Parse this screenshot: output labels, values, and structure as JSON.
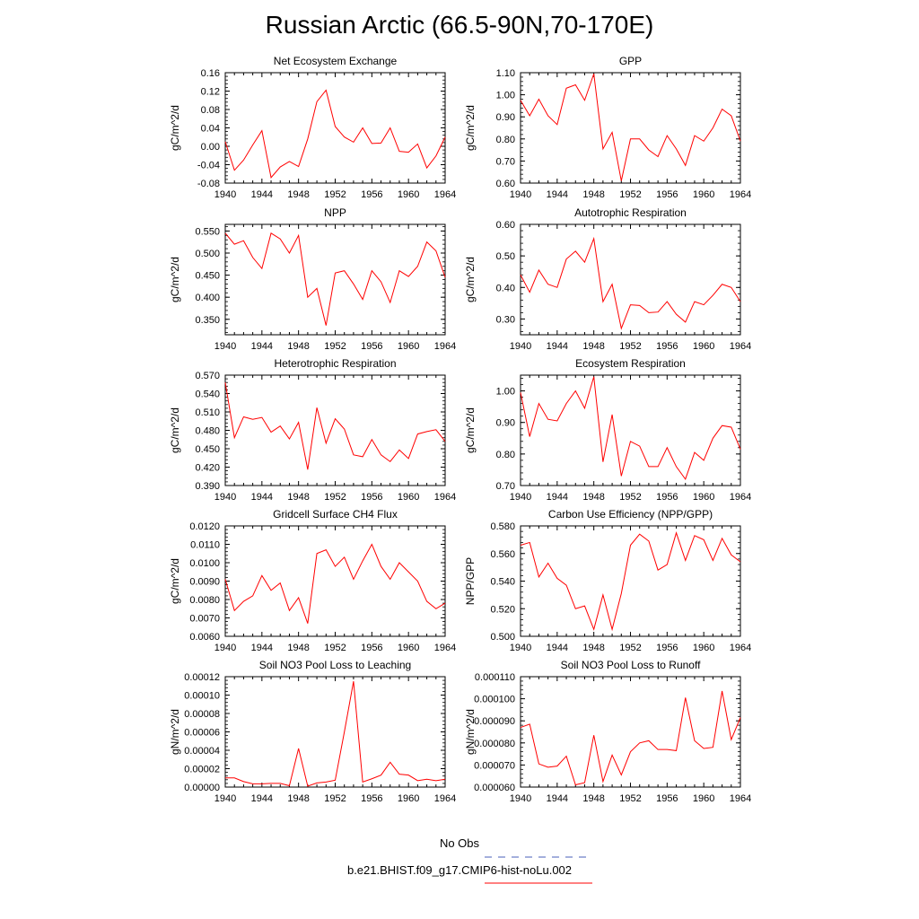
{
  "title": "Russian Arctic (66.5-90N,70-170E)",
  "legend": {
    "obs_label": "No Obs",
    "obs_color": "#4a5fb8",
    "model_label": "b.e21.BHIST.f09_g17.CMIP6-hist-noLu.002",
    "model_color": "#ff0000"
  },
  "chart_data": [
    {
      "type": "line",
      "title": "Net Ecosystem Exchange",
      "ylabel": "gC/m^2/d",
      "xlabel": "",
      "x": [
        1940,
        1941,
        1942,
        1943,
        1944,
        1945,
        1946,
        1947,
        1948,
        1949,
        1950,
        1951,
        1952,
        1953,
        1954,
        1955,
        1956,
        1957,
        1958,
        1959,
        1960,
        1961,
        1962,
        1963,
        1964
      ],
      "series": [
        {
          "values": [
            0.01,
            -0.052,
            -0.03,
            0.003,
            0.034,
            -0.068,
            -0.045,
            -0.033,
            -0.044,
            0.016,
            0.097,
            0.122,
            0.043,
            0.02,
            0.009,
            0.04,
            0.006,
            0.007,
            0.04,
            -0.011,
            -0.013,
            0.005,
            -0.047,
            -0.021,
            0.02
          ],
          "color": "#ff0000"
        }
      ],
      "xlim": [
        1940,
        1964
      ],
      "ylim": [
        -0.08,
        0.16
      ],
      "xticks": [
        "1940",
        "1944",
        "1948",
        "1952",
        "1956",
        "1960",
        "1964"
      ],
      "yticks": [
        "-0.08",
        "-0.04",
        "0.00",
        "0.04",
        "0.08",
        "0.12",
        "0.16"
      ]
    },
    {
      "type": "line",
      "title": "GPP",
      "ylabel": "gC/m^2/d",
      "xlabel": "",
      "x": [
        1940,
        1941,
        1942,
        1943,
        1944,
        1945,
        1946,
        1947,
        1948,
        1949,
        1950,
        1951,
        1952,
        1953,
        1954,
        1955,
        1956,
        1957,
        1958,
        1959,
        1960,
        1961,
        1962,
        1963,
        1964
      ],
      "series": [
        {
          "values": [
            0.975,
            0.905,
            0.98,
            0.905,
            0.865,
            1.03,
            1.045,
            0.975,
            1.095,
            0.755,
            0.83,
            0.61,
            0.8,
            0.8,
            0.75,
            0.72,
            0.815,
            0.755,
            0.68,
            0.815,
            0.79,
            0.85,
            0.935,
            0.905,
            0.79
          ],
          "color": "#ff0000"
        }
      ],
      "xlim": [
        1940,
        1964
      ],
      "ylim": [
        0.6,
        1.1
      ],
      "xticks": [
        "1940",
        "1944",
        "1948",
        "1952",
        "1956",
        "1960",
        "1964"
      ],
      "yticks": [
        "0.60",
        "0.70",
        "0.80",
        "0.90",
        "1.00",
        "1.10"
      ]
    },
    {
      "type": "line",
      "title": "NPP",
      "ylabel": "gC/m^2/d",
      "xlabel": "",
      "x": [
        1940,
        1941,
        1942,
        1943,
        1944,
        1945,
        1946,
        1947,
        1948,
        1949,
        1950,
        1951,
        1952,
        1953,
        1954,
        1955,
        1956,
        1957,
        1958,
        1959,
        1960,
        1961,
        1962,
        1963,
        1964
      ],
      "series": [
        {
          "values": [
            0.545,
            0.52,
            0.528,
            0.49,
            0.465,
            0.545,
            0.532,
            0.5,
            0.54,
            0.4,
            0.42,
            0.336,
            0.455,
            0.46,
            0.43,
            0.395,
            0.46,
            0.435,
            0.388,
            0.46,
            0.447,
            0.47,
            0.525,
            0.505,
            0.445
          ],
          "color": "#ff0000"
        }
      ],
      "xlim": [
        1940,
        1964
      ],
      "ylim": [
        0.315,
        0.565
      ],
      "xticks": [
        "1940",
        "1944",
        "1948",
        "1952",
        "1956",
        "1960",
        "1964"
      ],
      "yticks": [
        "0.350",
        "0.400",
        "0.450",
        "0.500",
        "0.550"
      ]
    },
    {
      "type": "line",
      "title": "Autotrophic Respiration",
      "ylabel": "gC/m^2/d",
      "xlabel": "",
      "x": [
        1940,
        1941,
        1942,
        1943,
        1944,
        1945,
        1946,
        1947,
        1948,
        1949,
        1950,
        1951,
        1952,
        1953,
        1954,
        1955,
        1956,
        1957,
        1958,
        1959,
        1960,
        1961,
        1962,
        1963,
        1964
      ],
      "series": [
        {
          "values": [
            0.44,
            0.385,
            0.455,
            0.41,
            0.4,
            0.49,
            0.515,
            0.48,
            0.555,
            0.355,
            0.41,
            0.27,
            0.345,
            0.343,
            0.32,
            0.322,
            0.355,
            0.315,
            0.29,
            0.355,
            0.345,
            0.375,
            0.41,
            0.4,
            0.355
          ],
          "color": "#ff0000"
        }
      ],
      "xlim": [
        1940,
        1964
      ],
      "ylim": [
        0.25,
        0.6
      ],
      "xticks": [
        "1940",
        "1944",
        "1948",
        "1952",
        "1956",
        "1960",
        "1964"
      ],
      "yticks": [
        "0.30",
        "0.40",
        "0.50",
        "0.60"
      ]
    },
    {
      "type": "line",
      "title": "Heterotrophic Respiration",
      "ylabel": "gC/m^2/d",
      "xlabel": "",
      "x": [
        1940,
        1941,
        1942,
        1943,
        1944,
        1945,
        1946,
        1947,
        1948,
        1949,
        1950,
        1951,
        1952,
        1953,
        1954,
        1955,
        1956,
        1957,
        1958,
        1959,
        1960,
        1961,
        1962,
        1963,
        1964
      ],
      "series": [
        {
          "values": [
            0.558,
            0.468,
            0.502,
            0.498,
            0.501,
            0.477,
            0.487,
            0.466,
            0.493,
            0.416,
            0.517,
            0.459,
            0.499,
            0.482,
            0.44,
            0.437,
            0.465,
            0.44,
            0.429,
            0.448,
            0.434,
            0.474,
            0.478,
            0.481,
            0.462
          ],
          "color": "#ff0000"
        }
      ],
      "xlim": [
        1940,
        1964
      ],
      "ylim": [
        0.39,
        0.57
      ],
      "xticks": [
        "1940",
        "1944",
        "1948",
        "1952",
        "1956",
        "1960",
        "1964"
      ],
      "yticks": [
        "0.390",
        "0.420",
        "0.450",
        "0.480",
        "0.510",
        "0.540",
        "0.570"
      ]
    },
    {
      "type": "line",
      "title": "Ecosystem Respiration",
      "ylabel": "gC/m^2/d",
      "xlabel": "",
      "x": [
        1940,
        1941,
        1942,
        1943,
        1944,
        1945,
        1946,
        1947,
        1948,
        1949,
        1950,
        1951,
        1952,
        1953,
        1954,
        1955,
        1956,
        1957,
        1958,
        1959,
        1960,
        1961,
        1962,
        1963,
        1964
      ],
      "series": [
        {
          "values": [
            0.995,
            0.855,
            0.96,
            0.91,
            0.905,
            0.96,
            1.0,
            0.945,
            1.045,
            0.775,
            0.925,
            0.73,
            0.84,
            0.825,
            0.76,
            0.76,
            0.82,
            0.76,
            0.72,
            0.805,
            0.78,
            0.85,
            0.89,
            0.885,
            0.815
          ],
          "color": "#ff0000"
        }
      ],
      "xlim": [
        1940,
        1964
      ],
      "ylim": [
        0.7,
        1.05
      ],
      "xticks": [
        "1940",
        "1944",
        "1948",
        "1952",
        "1956",
        "1960",
        "1964"
      ],
      "yticks": [
        "0.70",
        "0.80",
        "0.90",
        "1.00"
      ]
    },
    {
      "type": "line",
      "title": "Gridcell Surface CH4 Flux",
      "ylabel": "gC/m^2/d",
      "xlabel": "",
      "x": [
        1940,
        1941,
        1942,
        1943,
        1944,
        1945,
        1946,
        1947,
        1948,
        1949,
        1950,
        1951,
        1952,
        1953,
        1954,
        1955,
        1956,
        1957,
        1958,
        1959,
        1960,
        1961,
        1962,
        1963,
        1964
      ],
      "series": [
        {
          "values": [
            0.0091,
            0.0074,
            0.0079,
            0.0082,
            0.0093,
            0.0085,
            0.0089,
            0.0074,
            0.0081,
            0.0067,
            0.0105,
            0.0107,
            0.0098,
            0.0103,
            0.0091,
            0.0101,
            0.011,
            0.0098,
            0.0091,
            0.01,
            0.0095,
            0.009,
            0.0079,
            0.0075,
            0.0078
          ],
          "color": "#ff0000"
        }
      ],
      "xlim": [
        1940,
        1964
      ],
      "ylim": [
        0.006,
        0.012
      ],
      "xticks": [
        "1940",
        "1944",
        "1948",
        "1952",
        "1956",
        "1960",
        "1964"
      ],
      "yticks": [
        "0.0060",
        "0.0070",
        "0.0080",
        "0.0090",
        "0.0100",
        "0.0110",
        "0.0120"
      ]
    },
    {
      "type": "line",
      "title": "Carbon Use Efficiency (NPP/GPP)",
      "ylabel": "NPP/GPP",
      "xlabel": "",
      "x": [
        1940,
        1941,
        1942,
        1943,
        1944,
        1945,
        1946,
        1947,
        1948,
        1949,
        1950,
        1951,
        1952,
        1953,
        1954,
        1955,
        1956,
        1957,
        1958,
        1959,
        1960,
        1961,
        1962,
        1963,
        1964
      ],
      "series": [
        {
          "values": [
            0.566,
            0.568,
            0.543,
            0.553,
            0.542,
            0.537,
            0.52,
            0.522,
            0.505,
            0.53,
            0.505,
            0.531,
            0.566,
            0.574,
            0.569,
            0.548,
            0.552,
            0.575,
            0.555,
            0.573,
            0.57,
            0.555,
            0.571,
            0.559,
            0.554
          ],
          "color": "#ff0000"
        }
      ],
      "xlim": [
        1940,
        1964
      ],
      "ylim": [
        0.5,
        0.58
      ],
      "xticks": [
        "1940",
        "1944",
        "1948",
        "1952",
        "1956",
        "1960",
        "1964"
      ],
      "yticks": [
        "0.500",
        "0.520",
        "0.540",
        "0.560",
        "0.580"
      ]
    },
    {
      "type": "line",
      "title": "Soil NO3 Pool Loss to Leaching",
      "ylabel": "gN/m^2/d",
      "xlabel": "",
      "x": [
        1940,
        1941,
        1942,
        1943,
        1944,
        1945,
        1946,
        1947,
        1948,
        1949,
        1950,
        1951,
        1952,
        1953,
        1954,
        1955,
        1956,
        1957,
        1958,
        1959,
        1960,
        1961,
        1962,
        1963,
        1964
      ],
      "series": [
        {
          "values": [
            1e-05,
            1e-05,
            6e-06,
            3.5e-06,
            3.5e-06,
            4e-06,
            4e-06,
            1.5e-06,
            4.2e-05,
            1e-06,
            4.5e-06,
            5.5e-06,
            7.5e-06,
            6e-05,
            0.000115,
            5.5e-06,
            9e-06,
            1.3e-05,
            2.7e-05,
            1.4e-05,
            1.3e-05,
            7e-06,
            8.5e-06,
            7e-06,
            8.5e-06
          ],
          "color": "#ff0000"
        }
      ],
      "xlim": [
        1940,
        1964
      ],
      "ylim": [
        0.0,
        0.00012
      ],
      "xticks": [
        "1940",
        "1944",
        "1948",
        "1952",
        "1956",
        "1960",
        "1964"
      ],
      "yticks": [
        "0.00000",
        "0.00002",
        "0.00004",
        "0.00006",
        "0.00008",
        "0.00010",
        "0.00012"
      ]
    },
    {
      "type": "line",
      "title": "Soil NO3 Pool Loss to Runoff",
      "ylabel": "gN/m^2/d",
      "xlabel": "",
      "x": [
        1940,
        1941,
        1942,
        1943,
        1944,
        1945,
        1946,
        1947,
        1948,
        1949,
        1950,
        1951,
        1952,
        1953,
        1954,
        1955,
        1956,
        1957,
        1958,
        1959,
        1960,
        1961,
        1962,
        1963,
        1964
      ],
      "series": [
        {
          "values": [
            8.7e-05,
            8.85e-05,
            7.05e-05,
            6.9e-05,
            6.95e-05,
            7.4e-05,
            6.1e-05,
            6.2e-05,
            8.35e-05,
            6.25e-05,
            7.45e-05,
            6.55e-05,
            7.6e-05,
            8e-05,
            8.1e-05,
            7.7e-05,
            7.7e-05,
            7.65e-05,
            0.0001005,
            8.1e-05,
            7.75e-05,
            7.8e-05,
            0.0001035,
            8.15e-05,
            9.15e-05
          ],
          "color": "#ff0000"
        }
      ],
      "xlim": [
        1940,
        1964
      ],
      "ylim": [
        6e-05,
        0.00011
      ],
      "xticks": [
        "1940",
        "1944",
        "1948",
        "1952",
        "1956",
        "1960",
        "1964"
      ],
      "yticks": [
        "0.000060",
        "0.000070",
        "0.000080",
        "0.000090",
        "0.000100",
        "0.000110"
      ]
    }
  ]
}
